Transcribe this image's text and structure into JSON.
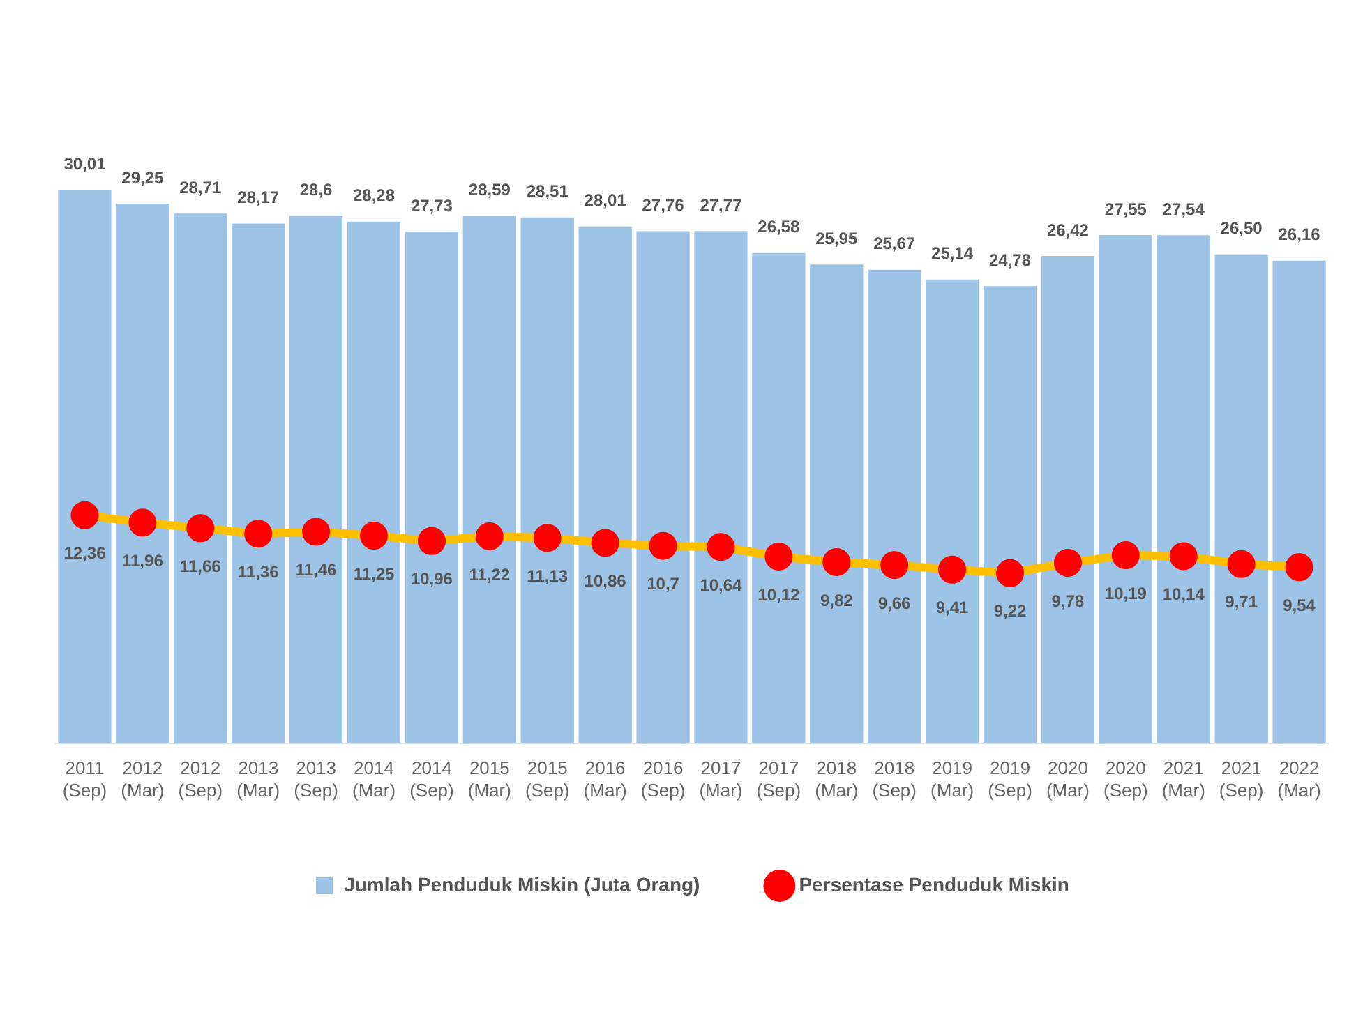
{
  "chart_data": {
    "type": "bar",
    "categories": [
      "2011 (Sep)",
      "2012 (Mar)",
      "2012 (Sep)",
      "2013 (Mar)",
      "2013 (Sep)",
      "2014 (Mar)",
      "2014 (Sep)",
      "2015 (Mar)",
      "2015 (Sep)",
      "2016 (Mar)",
      "2016 (Sep)",
      "2017 (Mar)",
      "2017 (Sep)",
      "2018 (Mar)",
      "2018 (Sep)",
      "2019 (Mar)",
      "2019 (Sep)",
      "2020 (Mar)",
      "2020 (Sep)",
      "2021 (Mar)",
      "2021 (Sep)",
      "2022 (Mar)"
    ],
    "series": [
      {
        "name": "Jumlah Penduduk Miskin (Juta Orang)",
        "color": "#9dc3e6",
        "values": [
          30.01,
          29.25,
          28.71,
          28.17,
          28.6,
          28.28,
          27.73,
          28.59,
          28.51,
          28.01,
          27.76,
          27.77,
          26.58,
          25.95,
          25.67,
          25.14,
          24.78,
          26.42,
          27.55,
          27.54,
          26.5,
          26.16
        ],
        "value_labels": [
          "30,01",
          "29,25",
          "28,71",
          "28,17",
          "28,6",
          "28,28",
          "27,73",
          "28,59",
          "28,51",
          "28,01",
          "27,76",
          "27,77",
          "26,58",
          "25,95",
          "25,67",
          "25,14",
          "24,78",
          "26,42",
          "27,55",
          "27,54",
          "26,50",
          "26,16"
        ]
      },
      {
        "name": "Persentase Penduduk Miskin",
        "type": "line",
        "color": "#ffc000",
        "marker": "circle",
        "colors": [
          "#ff0000",
          "#ff0000",
          "#ff0000",
          "#ff0000",
          "#ff0000",
          "#ff0000",
          "#ff0000",
          "#ff0000",
          "#ff0000",
          "#ff0000",
          "#ff0000",
          "#ff0000",
          "#ff0000",
          "#ff0000",
          "#ff0000",
          "#ff0000",
          "#ff0000",
          "#ff0000",
          "#ff0000",
          "#ff0000",
          "#ff0000",
          "#ff0000"
        ],
        "values": [
          12.36,
          11.96,
          11.66,
          11.36,
          11.46,
          11.25,
          10.96,
          11.22,
          11.13,
          10.86,
          10.7,
          10.64,
          10.12,
          9.82,
          9.66,
          9.41,
          9.22,
          9.78,
          10.19,
          10.14,
          9.71,
          9.54
        ],
        "value_labels": [
          "12,36",
          "11,96",
          "11,66",
          "11,36",
          "11,46",
          "11,25",
          "10,96",
          "11,22",
          "11,13",
          "10,86",
          "10,7",
          "10,64",
          "10,12",
          "9,82",
          "9,66",
          "9,41",
          "9,22",
          "9,78",
          "10,19",
          "10,14",
          "9,71",
          "9,54"
        ]
      }
    ],
    "tick_labels": "x",
    "grid": false,
    "legend": "bottom"
  }
}
